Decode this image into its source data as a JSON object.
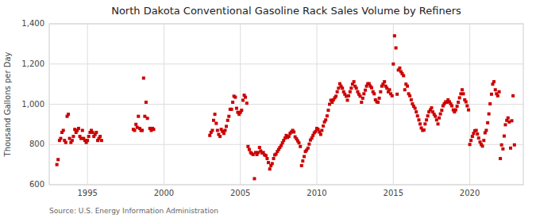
{
  "chart_data": {
    "type": "scatter",
    "title": "North Dakota Conventional Gasoline Rack Sales Volume by Refiners",
    "ylabel": "Thousand Gallons per Day",
    "source": "Source: U.S. Energy Information Administration",
    "color": "#CC0000",
    "marker": "square",
    "grid": true,
    "xlim": [
      1992.5,
      2023.5
    ],
    "xticks": [
      1995,
      2000,
      2005,
      2010,
      2015,
      2020
    ],
    "ylim": [
      600,
      1400
    ],
    "yticks": [
      600,
      800,
      {
        "value": 1000,
        "label": "1,000"
      },
      {
        "value": 1200,
        "label": "1,200"
      },
      {
        "value": 1400,
        "label": "1,400"
      }
    ],
    "x": [
      1993.0,
      1993.08,
      1993.17,
      1993.25,
      1993.33,
      1993.42,
      1993.5,
      1993.58,
      1993.67,
      1993.75,
      1993.83,
      1993.92,
      1994.0,
      1994.08,
      1994.17,
      1994.25,
      1994.33,
      1994.42,
      1994.5,
      1994.58,
      1994.67,
      1994.75,
      1994.83,
      1994.92,
      1995.0,
      1995.08,
      1995.17,
      1995.25,
      1995.33,
      1995.42,
      1995.5,
      1995.58,
      1995.67,
      1995.75,
      1995.83,
      1995.92,
      1998.0,
      1998.08,
      1998.17,
      1998.25,
      1998.33,
      1998.42,
      1998.5,
      1998.58,
      1998.67,
      1998.75,
      1998.83,
      1998.92,
      1999.08,
      1999.17,
      1999.25,
      1999.33,
      2003.0,
      2003.08,
      2003.17,
      2003.25,
      2003.33,
      2003.42,
      2003.5,
      2003.58,
      2003.67,
      2003.75,
      2003.83,
      2003.92,
      2004.0,
      2004.08,
      2004.17,
      2004.25,
      2004.33,
      2004.42,
      2004.5,
      2004.58,
      2004.67,
      2004.75,
      2004.83,
      2004.92,
      2005.0,
      2005.08,
      2005.17,
      2005.25,
      2005.33,
      2005.42,
      2005.5,
      2005.58,
      2005.67,
      2005.75,
      2005.83,
      2005.92,
      2006.0,
      2006.08,
      2006.17,
      2006.25,
      2006.33,
      2006.42,
      2006.5,
      2006.58,
      2006.67,
      2006.75,
      2006.83,
      2006.92,
      2007.0,
      2007.08,
      2007.17,
      2007.25,
      2007.33,
      2007.42,
      2007.5,
      2007.58,
      2007.67,
      2007.75,
      2007.83,
      2007.92,
      2008.0,
      2008.08,
      2008.17,
      2008.25,
      2008.33,
      2008.42,
      2008.5,
      2008.58,
      2008.67,
      2008.75,
      2008.83,
      2008.92,
      2009.0,
      2009.08,
      2009.17,
      2009.25,
      2009.33,
      2009.42,
      2009.5,
      2009.58,
      2009.67,
      2009.75,
      2009.83,
      2009.92,
      2010.0,
      2010.08,
      2010.17,
      2010.25,
      2010.33,
      2010.42,
      2010.5,
      2010.58,
      2010.67,
      2010.75,
      2010.83,
      2010.92,
      2011.0,
      2011.08,
      2011.17,
      2011.25,
      2011.33,
      2011.42,
      2011.5,
      2011.58,
      2011.67,
      2011.75,
      2011.83,
      2011.92,
      2012.0,
      2012.08,
      2012.17,
      2012.25,
      2012.33,
      2012.42,
      2012.5,
      2012.58,
      2012.67,
      2012.75,
      2012.83,
      2012.92,
      2013.0,
      2013.08,
      2013.17,
      2013.25,
      2013.33,
      2013.42,
      2013.5,
      2013.58,
      2013.67,
      2013.75,
      2013.83,
      2013.92,
      2014.0,
      2014.08,
      2014.17,
      2014.25,
      2014.33,
      2014.42,
      2014.5,
      2014.58,
      2014.67,
      2014.75,
      2014.83,
      2014.92,
      2015.0,
      2015.08,
      2015.17,
      2015.25,
      2015.33,
      2015.42,
      2015.5,
      2015.58,
      2015.67,
      2015.75,
      2015.83,
      2015.92,
      2016.0,
      2016.08,
      2016.17,
      2016.25,
      2016.33,
      2016.42,
      2016.5,
      2016.58,
      2016.67,
      2016.75,
      2016.83,
      2016.92,
      2017.0,
      2017.08,
      2017.17,
      2017.25,
      2017.33,
      2017.42,
      2017.5,
      2017.58,
      2017.67,
      2017.75,
      2017.83,
      2017.92,
      2018.0,
      2018.08,
      2018.17,
      2018.25,
      2018.33,
      2018.42,
      2018.5,
      2018.58,
      2018.67,
      2018.75,
      2018.83,
      2018.92,
      2019.0,
      2019.08,
      2019.17,
      2019.25,
      2019.33,
      2019.42,
      2019.5,
      2019.58,
      2019.67,
      2019.75,
      2019.83,
      2019.92,
      2020.0,
      2020.08,
      2020.17,
      2020.25,
      2020.33,
      2020.42,
      2020.5,
      2020.58,
      2020.67,
      2020.75,
      2020.83,
      2020.92,
      2021.0,
      2021.08,
      2021.17,
      2021.25,
      2021.33,
      2021.42,
      2021.5,
      2021.58,
      2021.67,
      2021.75,
      2021.83,
      2021.92,
      2022.0,
      2022.08,
      2022.17,
      2022.25,
      2022.33,
      2022.42,
      2022.5,
      2022.58,
      2022.67,
      2022.75,
      2022.83,
      2022.92
    ],
    "values": [
      700,
      725,
      820,
      830,
      860,
      870,
      820,
      810,
      940,
      950,
      830,
      810,
      820,
      840,
      875,
      860,
      870,
      880,
      840,
      830,
      870,
      830,
      820,
      810,
      820,
      840,
      860,
      870,
      860,
      840,
      850,
      860,
      820,
      830,
      840,
      820,
      875,
      870,
      900,
      885,
      940,
      880,
      870,
      870,
      1130,
      940,
      1010,
      930,
      880,
      870,
      880,
      875,
      845,
      860,
      870,
      920,
      950,
      905,
      870,
      850,
      840,
      875,
      865,
      855,
      870,
      890,
      920,
      940,
      975,
      975,
      1010,
      1040,
      1035,
      980,
      960,
      950,
      960,
      970,
      1020,
      1045,
      1035,
      1005,
      790,
      775,
      760,
      755,
      750,
      630,
      760,
      750,
      760,
      785,
      768,
      758,
      760,
      748,
      745,
      730,
      710,
      678,
      695,
      705,
      730,
      748,
      752,
      765,
      775,
      785,
      795,
      808,
      820,
      832,
      845,
      835,
      840,
      855,
      862,
      870,
      862,
      838,
      828,
      818,
      808,
      790,
      695,
      718,
      740,
      765,
      772,
      782,
      802,
      822,
      832,
      845,
      858,
      865,
      880,
      875,
      862,
      850,
      870,
      892,
      912,
      922,
      942,
      970,
      1000,
      1020,
      1010,
      1022,
      1032,
      1040,
      1062,
      1080,
      1102,
      1090,
      1080,
      1062,
      1050,
      1040,
      1020,
      1042,
      1062,
      1080,
      1100,
      1112,
      1090,
      1080,
      1062,
      1050,
      1040,
      1010,
      1030,
      1052,
      1070,
      1090,
      1102,
      1102,
      1090,
      1082,
      1062,
      1052,
      1022,
      1012,
      1010,
      1030,
      1062,
      1090,
      1100,
      1112,
      1090,
      1080,
      1062,
      1072,
      1052,
      1042,
      1200,
      1340,
      1280,
      1050,
      1170,
      1180,
      1162,
      1152,
      1142,
      1072,
      1100,
      1090,
      1052,
      1042,
      1022,
      1002,
      990,
      980,
      962,
      942,
      922,
      902,
      882,
      870,
      872,
      902,
      922,
      942,
      962,
      972,
      982,
      962,
      950,
      940,
      922,
      902,
      932,
      952,
      970,
      992,
      1002,
      1012,
      1010,
      1022,
      1012,
      1002,
      992,
      972,
      962,
      972,
      990,
      1010,
      1032,
      1052,
      1072,
      1052,
      1022,
      1012,
      992,
      972,
      800,
      820,
      840,
      855,
      868,
      870,
      852,
      832,
      812,
      800,
      792,
      820,
      858,
      870,
      908,
      952,
      1002,
      1050,
      1100,
      1112,
      1072,
      1052,
      1042,
      1062,
      730,
      798,
      778,
      842,
      898,
      920,
      932,
      912,
      782,
      918,
      1042,
      798
    ]
  }
}
